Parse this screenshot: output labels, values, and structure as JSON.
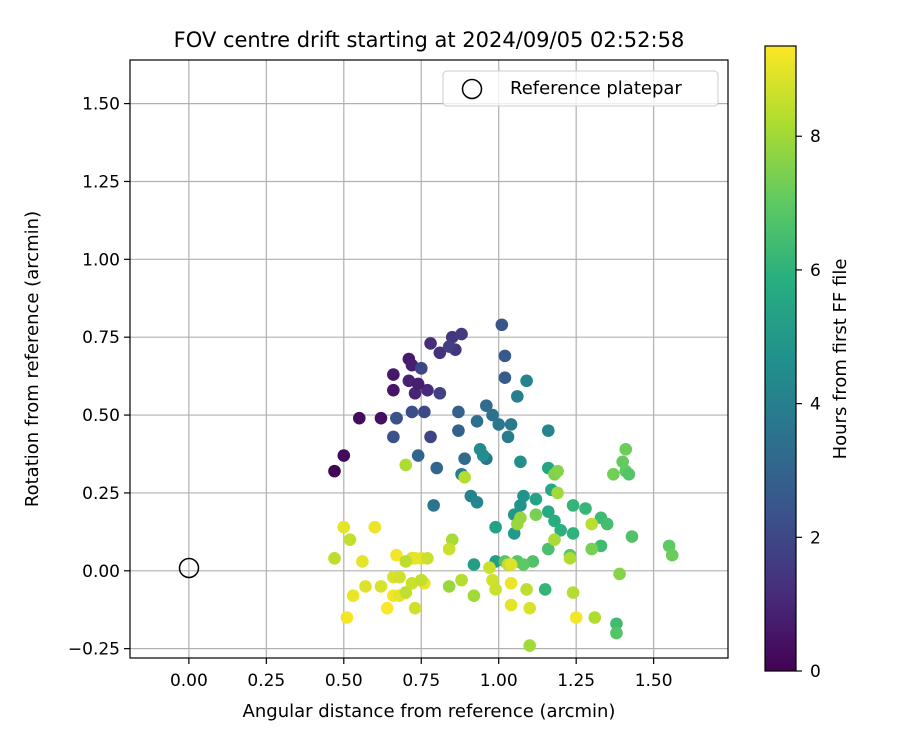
{
  "chart_data": {
    "type": "scatter",
    "title": "FOV centre drift starting at 2024/09/05 02:52:58",
    "xlabel": "Angular distance from reference (arcmin)",
    "ylabel": "Rotation from reference (arcmin)",
    "xlim": [
      -0.19,
      1.74
    ],
    "ylim": [
      -0.28,
      1.64
    ],
    "xticks": [
      "0.00",
      "0.25",
      "0.50",
      "0.75",
      "1.00",
      "1.25",
      "1.50"
    ],
    "yticks": [
      "−0.25",
      "0.00",
      "0.25",
      "0.50",
      "0.75",
      "1.00",
      "1.25",
      "1.50"
    ],
    "grid": true,
    "legend": {
      "position": "top-right",
      "label": "Reference platepar"
    },
    "reference_point": {
      "x": 0.0,
      "y": 0.0
    },
    "colorbar": {
      "label": "Hours from first FF file",
      "colormap": "viridis",
      "range": [
        0,
        9.35
      ],
      "ticks": [
        "0",
        "2",
        "4",
        "6",
        "8"
      ]
    },
    "points": [
      [
        0.47,
        0.32,
        0.1
      ],
      [
        0.5,
        0.37,
        0.2
      ],
      [
        0.55,
        0.49,
        0.3
      ],
      [
        0.62,
        0.49,
        0.4
      ],
      [
        0.67,
        0.49,
        0.5
      ],
      [
        0.66,
        0.63,
        0.6
      ],
      [
        0.71,
        0.68,
        0.7
      ],
      [
        0.72,
        0.66,
        0.8
      ],
      [
        0.71,
        0.61,
        0.9
      ],
      [
        0.73,
        0.57,
        1.0
      ],
      [
        0.77,
        0.58,
        1.1
      ],
      [
        0.78,
        0.73,
        1.2
      ],
      [
        0.81,
        0.7,
        1.3
      ],
      [
        0.86,
        0.71,
        1.4
      ],
      [
        0.85,
        0.75,
        1.5
      ],
      [
        0.88,
        0.76,
        1.6
      ],
      [
        0.66,
        0.58,
        0.5
      ],
      [
        0.74,
        0.6,
        0.8
      ],
      [
        0.75,
        0.65,
        1.0
      ],
      [
        0.84,
        0.72,
        1.7
      ],
      [
        0.81,
        0.57,
        1.8
      ],
      [
        0.78,
        0.43,
        1.9
      ],
      [
        0.75,
        0.65,
        2.0
      ],
      [
        0.76,
        0.51,
        2.1
      ],
      [
        0.72,
        0.51,
        2.2
      ],
      [
        0.66,
        0.43,
        2.3
      ],
      [
        0.67,
        0.49,
        2.4
      ],
      [
        1.01,
        0.79,
        2.5
      ],
      [
        1.02,
        0.69,
        2.6
      ],
      [
        1.02,
        0.62,
        2.7
      ],
      [
        0.87,
        0.51,
        2.8
      ],
      [
        0.87,
        0.45,
        2.9
      ],
      [
        0.74,
        0.37,
        3.0
      ],
      [
        0.8,
        0.33,
        3.1
      ],
      [
        0.89,
        0.36,
        3.2
      ],
      [
        0.96,
        0.53,
        3.3
      ],
      [
        0.93,
        0.48,
        3.4
      ],
      [
        0.98,
        0.5,
        3.5
      ],
      [
        0.96,
        0.36,
        3.6
      ],
      [
        1.0,
        0.47,
        3.7
      ],
      [
        1.04,
        0.47,
        3.8
      ],
      [
        1.03,
        0.43,
        3.9
      ],
      [
        1.06,
        0.56,
        4.0
      ],
      [
        1.09,
        0.61,
        4.1
      ],
      [
        1.16,
        0.45,
        4.2
      ],
      [
        0.79,
        0.21,
        3.6
      ],
      [
        0.88,
        0.31,
        4.0
      ],
      [
        0.91,
        0.24,
        4.1
      ],
      [
        0.93,
        0.22,
        4.3
      ],
      [
        0.94,
        0.39,
        4.4
      ],
      [
        0.95,
        0.37,
        4.5
      ],
      [
        1.07,
        0.35,
        4.6
      ],
      [
        1.08,
        0.24,
        4.7
      ],
      [
        1.07,
        0.21,
        4.8
      ],
      [
        1.05,
        0.18,
        4.9
      ],
      [
        1.05,
        0.12,
        5.0
      ],
      [
        0.99,
        0.03,
        5.1
      ],
      [
        0.92,
        0.02,
        5.2
      ],
      [
        0.99,
        0.14,
        5.3
      ],
      [
        1.12,
        0.23,
        5.4
      ],
      [
        1.16,
        0.33,
        5.5
      ],
      [
        1.17,
        0.26,
        5.6
      ],
      [
        1.16,
        0.19,
        5.7
      ],
      [
        1.18,
        0.16,
        5.8
      ],
      [
        1.2,
        0.13,
        5.9
      ],
      [
        1.24,
        0.12,
        6.0
      ],
      [
        1.24,
        0.21,
        6.1
      ],
      [
        1.28,
        0.2,
        6.2
      ],
      [
        1.33,
        0.17,
        6.3
      ],
      [
        1.33,
        0.08,
        6.4
      ],
      [
        1.35,
        0.15,
        6.5
      ],
      [
        1.16,
        0.07,
        6.6
      ],
      [
        1.11,
        0.03,
        6.7
      ],
      [
        1.06,
        0.03,
        6.8
      ],
      [
        1.02,
        0.03,
        6.9
      ],
      [
        1.08,
        0.02,
        7.0
      ],
      [
        1.15,
        -0.06,
        6.1
      ],
      [
        1.38,
        -0.17,
        6.4
      ],
      [
        1.38,
        -0.2,
        6.8
      ],
      [
        1.23,
        0.05,
        6.9
      ],
      [
        1.41,
        0.32,
        7.0
      ],
      [
        1.42,
        0.31,
        6.8
      ],
      [
        1.4,
        0.35,
        7.1
      ],
      [
        1.41,
        0.39,
        7.2
      ],
      [
        1.37,
        0.31,
        7.3
      ],
      [
        1.43,
        0.11,
        6.7
      ],
      [
        1.55,
        0.08,
        7.0
      ],
      [
        1.56,
        0.05,
        7.2
      ],
      [
        1.12,
        0.18,
        7.4
      ],
      [
        1.18,
        0.31,
        7.5
      ],
      [
        1.19,
        0.32,
        7.6
      ],
      [
        1.3,
        0.07,
        7.4
      ],
      [
        1.39,
        -0.01,
        7.6
      ],
      [
        1.07,
        0.17,
        7.8
      ],
      [
        1.06,
        0.15,
        7.9
      ],
      [
        1.19,
        0.25,
        8.0
      ],
      [
        1.18,
        0.1,
        8.1
      ],
      [
        1.23,
        0.04,
        8.2
      ],
      [
        1.3,
        0.15,
        8.4
      ],
      [
        1.24,
        -0.07,
        8.3
      ],
      [
        1.31,
        -0.15,
        8.2
      ],
      [
        1.1,
        -0.24,
        8.0
      ],
      [
        1.09,
        -0.06,
        8.4
      ],
      [
        1.03,
        0.02,
        8.5
      ],
      [
        0.97,
        0.01,
        8.6
      ],
      [
        0.98,
        -0.03,
        8.7
      ],
      [
        0.99,
        -0.06,
        8.6
      ],
      [
        1.04,
        0.02,
        8.9
      ],
      [
        1.1,
        -0.12,
        8.8
      ],
      [
        1.04,
        -0.11,
        9.0
      ],
      [
        1.04,
        -0.04,
        9.1
      ],
      [
        1.25,
        -0.15,
        9.2
      ],
      [
        0.85,
        0.1,
        8.1
      ],
      [
        0.89,
        0.3,
        8.3
      ],
      [
        0.7,
        0.34,
        8.2
      ],
      [
        0.84,
        -0.05,
        7.9
      ],
      [
        0.88,
        -0.03,
        8.3
      ],
      [
        0.92,
        -0.08,
        8.0
      ],
      [
        0.84,
        0.07,
        8.6
      ],
      [
        0.47,
        0.04,
        8.4
      ],
      [
        0.52,
        0.1,
        8.5
      ],
      [
        0.5,
        0.14,
        9.0
      ],
      [
        0.6,
        0.14,
        9.1
      ],
      [
        0.56,
        0.03,
        9.0
      ],
      [
        0.62,
        -0.05,
        8.8
      ],
      [
        0.57,
        -0.05,
        8.9
      ],
      [
        0.53,
        -0.08,
        9.1
      ],
      [
        0.51,
        -0.15,
        9.2
      ],
      [
        0.64,
        -0.12,
        9.3
      ],
      [
        0.66,
        -0.08,
        9.2
      ],
      [
        0.68,
        -0.08,
        9.0
      ],
      [
        0.7,
        -0.07,
        8.9
      ],
      [
        0.66,
        -0.02,
        8.8
      ],
      [
        0.68,
        -0.02,
        8.7
      ],
      [
        0.72,
        -0.04,
        8.6
      ],
      [
        0.7,
        -0.07,
        8.5
      ],
      [
        0.73,
        -0.12,
        8.7
      ],
      [
        0.76,
        -0.04,
        9.1
      ],
      [
        0.75,
        -0.03,
        8.5
      ],
      [
        0.72,
        0.04,
        8.8
      ],
      [
        0.75,
        0.04,
        8.9
      ],
      [
        0.77,
        0.04,
        8.6
      ],
      [
        0.73,
        0.04,
        9.0
      ],
      [
        0.67,
        0.05,
        9.2
      ],
      [
        0.7,
        0.03,
        8.4
      ]
    ]
  }
}
